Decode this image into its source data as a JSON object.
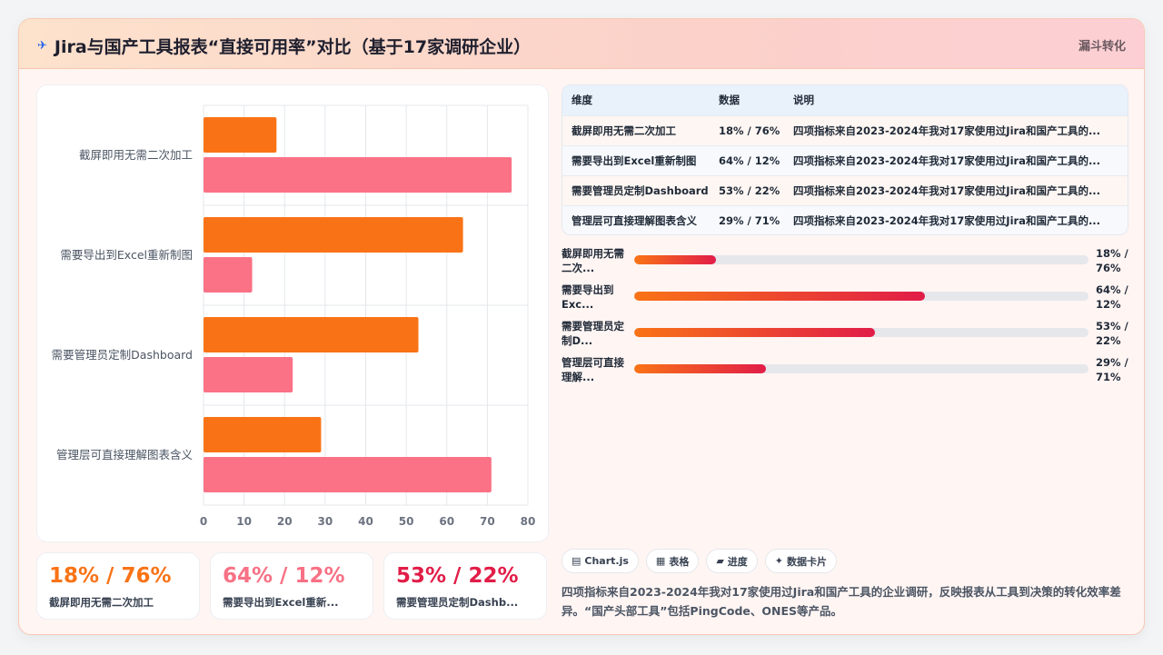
{
  "header": {
    "title": "Jira与国产工具报表“直接可用率”对比（基于17家调研企业）",
    "icon": "plane-icon",
    "tag": "漏斗转化"
  },
  "colors": {
    "series1": "#f97316",
    "series2": "#fb7185",
    "stat1": "#f97316",
    "stat2": "#f87185",
    "stat3": "#e11d48"
  },
  "chart_data": {
    "type": "bar",
    "orientation": "horizontal",
    "categories": [
      "截屏即用无需二次加工",
      "需要导出到Excel重新制图",
      "需要管理员定制Dashboard",
      "管理层可直接理解图表含义"
    ],
    "series": [
      {
        "values": [
          18,
          64,
          53,
          29
        ]
      },
      {
        "values": [
          76,
          12,
          22,
          71
        ]
      }
    ],
    "xlim": [
      0,
      80
    ],
    "xticks": [
      0,
      10,
      20,
      30,
      40,
      50,
      60,
      70,
      80
    ],
    "grid": true
  },
  "stats": [
    {
      "value": "18% / 76%",
      "label": "截屏即用无需二次加工"
    },
    {
      "value": "64% / 12%",
      "label": "需要导出到Excel重新..."
    },
    {
      "value": "53% / 22%",
      "label": "需要管理员定制Dashb..."
    }
  ],
  "table": {
    "headers": [
      "维度",
      "数据",
      "说明"
    ],
    "rows": [
      {
        "dim": "截屏即用无需二次加工",
        "data": "18% / 76%",
        "desc": "四项指标来自2023-2024年我对17家使用过Jira和国产工具的..."
      },
      {
        "dim": "需要导出到Excel重新制图",
        "data": "64% / 12%",
        "desc": "四项指标来自2023-2024年我对17家使用过Jira和国产工具的..."
      },
      {
        "dim": "需要管理员定制Dashboard",
        "data": "53% / 22%",
        "desc": "四项指标来自2023-2024年我对17家使用过Jira和国产工具的..."
      },
      {
        "dim": "管理层可直接理解图表含义",
        "data": "29% / 71%",
        "desc": "四项指标来自2023-2024年我对17家使用过Jira和国产工具的..."
      }
    ]
  },
  "progress": [
    {
      "label": "截屏即用无需二次...",
      "value": "18% / 76%",
      "fill": 0.18
    },
    {
      "label": "需要导出到Exc...",
      "value": "64% / 12%",
      "fill": 0.64
    },
    {
      "label": "需要管理员定制D...",
      "value": "53% / 22%",
      "fill": 0.53
    },
    {
      "label": "管理层可直接理解...",
      "value": "29% / 71%",
      "fill": 0.29
    }
  ],
  "chips": [
    {
      "icon": "chart-icon",
      "label": "Chart.js"
    },
    {
      "icon": "table-icon",
      "label": "表格"
    },
    {
      "icon": "progress-icon",
      "label": "进度"
    },
    {
      "icon": "card-icon",
      "label": "数据卡片"
    }
  ],
  "note": "四项指标来自2023-2024年我对17家使用过Jira和国产工具的企业调研，反映报表从工具到决策的转化效率差异。“国产头部工具”包括PingCode、ONES等产品。"
}
